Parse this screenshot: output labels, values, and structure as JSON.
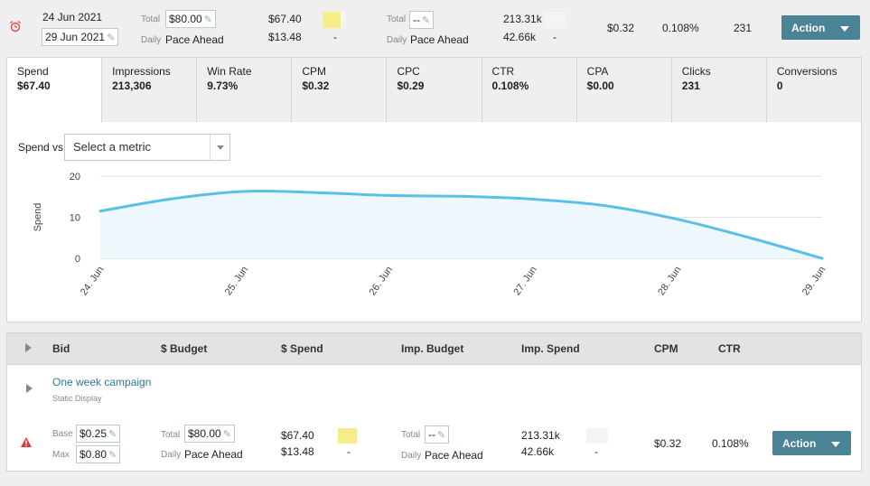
{
  "top_row": {
    "start_date": "24 Jun 2021",
    "end_date": "29 Jun 2021",
    "budget_total_label": "Total",
    "budget_total_value": "$80.00",
    "budget_daily_label": "Daily",
    "budget_daily_value": "Pace Ahead",
    "spend_total": "$67.40",
    "spend_daily": "$13.48",
    "spend_dash": "-",
    "imp_total_label": "Total",
    "imp_total_value": "--",
    "imp_daily_label": "Daily",
    "imp_daily_value": "Pace Ahead",
    "imp_spend_total": "213.31k",
    "imp_spend_daily": "42.66k",
    "imp_spend_dash": "-",
    "cpm": "$0.32",
    "ctr": "0.108%",
    "clicks": "231",
    "action_label": "Action"
  },
  "tabs": [
    {
      "name": "Spend",
      "value": "$67.40"
    },
    {
      "name": "Impressions",
      "value": "213,306"
    },
    {
      "name": "Win Rate",
      "value": "9.73%"
    },
    {
      "name": "CPM",
      "value": "$0.32"
    },
    {
      "name": "CPC",
      "value": "$0.29"
    },
    {
      "name": "CTR",
      "value": "0.108%"
    },
    {
      "name": "CPA",
      "value": "$0.00"
    },
    {
      "name": "Clicks",
      "value": "231"
    },
    {
      "name": "Conversions",
      "value": "0"
    }
  ],
  "chart_controls": {
    "vs_label": "Spend vs.",
    "select_placeholder": "Select a metric"
  },
  "chart_data": {
    "type": "area",
    "ylabel": "Spend",
    "ylim": [
      0,
      20
    ],
    "yticks": [
      "0",
      "10",
      "20"
    ],
    "categories": [
      "24. Jun",
      "25. Jun",
      "26. Jun",
      "27. Jun",
      "28. Jun",
      "29. Jun"
    ],
    "x": [
      0,
      0.5,
      1,
      1.5,
      2,
      2.5,
      3,
      3.5,
      4,
      4.5,
      5
    ],
    "values": [
      11.5,
      14.5,
      16.3,
      16,
      15.3,
      15.1,
      14.4,
      12.8,
      9.5,
      5,
      0
    ],
    "grid": true,
    "color": "#5bc0e8",
    "fill": "#eef7fc"
  },
  "table_header": {
    "bid": "Bid",
    "budget": "$ Budget",
    "spend": "$ Spend",
    "imp_budget": "Imp. Budget",
    "imp_spend": "Imp. Spend",
    "cpm": "CPM",
    "ctr": "CTR"
  },
  "campaign": {
    "name": "One week campaign",
    "type": "Static Display",
    "base_label": "Base",
    "base_value": "$0.25",
    "max_label": "Max",
    "max_value": "$0.80",
    "budget_total_label": "Total",
    "budget_total_value": "$80.00",
    "budget_daily_label": "Daily",
    "budget_daily_value": "Pace Ahead",
    "spend_total": "$67.40",
    "spend_daily": "$13.48",
    "spend_dash": "-",
    "imp_total_label": "Total",
    "imp_total_value": "--",
    "imp_daily_label": "Daily",
    "imp_daily_value": "Pace Ahead",
    "imp_spend_total": "213.31k",
    "imp_spend_daily": "42.66k",
    "imp_spend_dash": "-",
    "cpm": "$0.32",
    "ctr": "0.108%",
    "action_label": "Action"
  },
  "colors": {
    "accent": "#4a8296",
    "link": "#2d7a93",
    "alarm": "#e04b4b",
    "warning": "#d93b3b",
    "swatch": "#f6ec8a"
  }
}
